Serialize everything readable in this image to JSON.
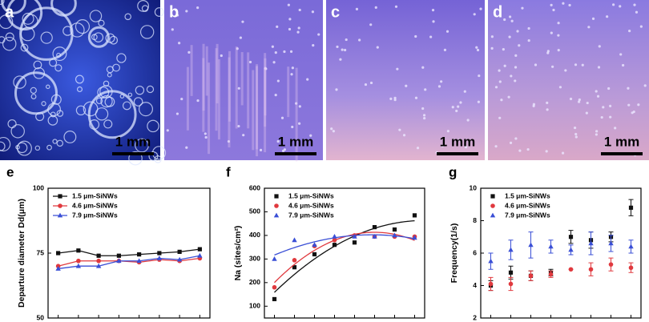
{
  "photos": [
    {
      "label": "a",
      "scale_bar": "1 mm"
    },
    {
      "label": "b",
      "scale_bar": "1 mm"
    },
    {
      "label": "c",
      "scale_bar": "1 mm"
    },
    {
      "label": "d",
      "scale_bar": "1 mm"
    }
  ],
  "chart_data": [
    {
      "type": "line",
      "label": "e",
      "ylabel": "Departure diameter Dd(μm)",
      "categories": [
        null,
        null,
        null,
        null,
        null,
        null,
        null,
        null
      ],
      "ylim": [
        50,
        100
      ],
      "yticks": [
        50,
        75,
        100
      ],
      "legend": "upper left",
      "series": [
        {
          "name": "1.5 μm-SiNWs",
          "color": "#111111",
          "marker": "square",
          "values": [
            75,
            76,
            74,
            74,
            74.5,
            75,
            75.5,
            76.5
          ]
        },
        {
          "name": "4.6 μm-SiNWs",
          "color": "#e0393e",
          "marker": "circle",
          "values": [
            70,
            72,
            72,
            72,
            71.5,
            72.5,
            72,
            73
          ]
        },
        {
          "name": "7.9 μm-SiNWs",
          "color": "#3a4fd6",
          "marker": "triangle",
          "values": [
            69,
            70,
            70,
            72,
            72,
            73,
            72.5,
            74
          ]
        }
      ]
    },
    {
      "type": "scatter",
      "label": "f",
      "ylabel": "Na (sites/cm²)",
      "fit": "quadratic",
      "categories": [
        null,
        null,
        null,
        null,
        null,
        null,
        null,
        null
      ],
      "ylim": [
        50,
        600
      ],
      "yticks": [
        100,
        200,
        300,
        400,
        500,
        600
      ],
      "legend": "upper left",
      "series": [
        {
          "name": "1.5 μm-SiNWs",
          "color": "#111111",
          "marker": "square",
          "values": [
            130,
            265,
            320,
            360,
            370,
            435,
            425,
            485
          ]
        },
        {
          "name": "4.6 μm-SiNWs",
          "color": "#e0393e",
          "marker": "circle",
          "values": [
            180,
            295,
            355,
            380,
            400,
            395,
            395,
            395
          ]
        },
        {
          "name": "7.9 μm-SiNWs",
          "color": "#3a4fd6",
          "marker": "triangle",
          "values": [
            300,
            380,
            360,
            395,
            395,
            395,
            400,
            390
          ]
        }
      ]
    },
    {
      "type": "errorbar",
      "label": "g",
      "ylabel": "Frequency(1/s)",
      "categories": [
        null,
        null,
        null,
        null,
        null,
        null,
        null,
        null
      ],
      "ylim": [
        2,
        10
      ],
      "yticks": [
        2,
        4,
        6,
        8,
        10
      ],
      "legend": "upper left",
      "series": [
        {
          "name": "1.5 μm-SiNWs",
          "color": "#111111",
          "marker": "square",
          "values": [
            4.0,
            4.8,
            4.6,
            4.8,
            7.0,
            6.8,
            7.0,
            8.8
          ],
          "errors": [
            0.3,
            0.4,
            0.3,
            0.2,
            0.4,
            0.5,
            0.3,
            0.5
          ]
        },
        {
          "name": "4.6 μm-SiNWs",
          "color": "#e0393e",
          "marker": "circle",
          "values": [
            4.1,
            4.1,
            4.6,
            4.7,
            5.0,
            5.0,
            5.3,
            5.1
          ],
          "errors": [
            0.4,
            0.4,
            0.3,
            0.2,
            0,
            0.4,
            0.4,
            0.3
          ]
        },
        {
          "name": "7.9 μm-SiNWs",
          "color": "#3a4fd6",
          "marker": "triangle",
          "values": [
            5.5,
            6.2,
            6.5,
            6.4,
            6.2,
            6.6,
            6.6,
            6.4
          ],
          "errors": [
            0.5,
            0.6,
            0.8,
            0.4,
            0.3,
            0.7,
            0.5,
            0.4
          ]
        }
      ]
    }
  ]
}
